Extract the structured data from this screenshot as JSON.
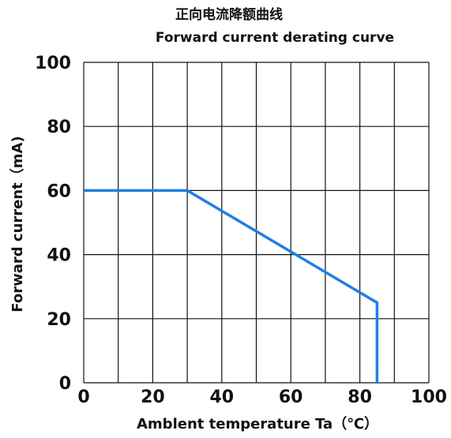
{
  "chart_data": {
    "type": "line",
    "title": "正向电流降额曲线",
    "subtitle": "Forward current derating curve",
    "xlabel": "Amblent temperature Ta（℃）",
    "ylabel": "Forward current（mA)",
    "xlim": [
      0,
      100
    ],
    "ylim": [
      0,
      100
    ],
    "x_ticks": [
      "0",
      "20",
      "40",
      "60",
      "80",
      "100"
    ],
    "y_ticks": [
      "0",
      "20",
      "40",
      "60",
      "80",
      "100"
    ],
    "grid": true,
    "grid_x_step": 10,
    "grid_y_step": 20,
    "series": [
      {
        "x": [
          0,
          30,
          85,
          85
        ],
        "y": [
          60,
          60,
          25,
          0
        ],
        "color": "#1f7fe0"
      }
    ]
  }
}
